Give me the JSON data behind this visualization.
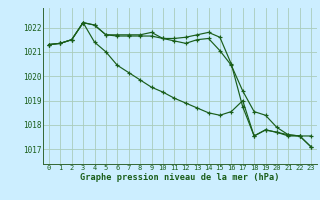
{
  "background_color": "#cceeff",
  "grid_color": "#aaccbb",
  "line_color": "#1a5e1a",
  "xlabel": "Graphe pression niveau de la mer (hPa)",
  "ylim": [
    1016.4,
    1022.8
  ],
  "xlim": [
    -0.5,
    23.5
  ],
  "yticks": [
    1017,
    1018,
    1019,
    1020,
    1021,
    1022
  ],
  "xticks": [
    0,
    1,
    2,
    3,
    4,
    5,
    6,
    7,
    8,
    9,
    10,
    11,
    12,
    13,
    14,
    15,
    16,
    17,
    18,
    19,
    20,
    21,
    22,
    23
  ],
  "series": [
    [
      1021.3,
      1021.35,
      1021.5,
      1022.2,
      1022.1,
      1021.7,
      1021.65,
      1021.65,
      1021.65,
      1021.65,
      1021.55,
      1021.45,
      1021.35,
      1021.5,
      1021.55,
      1021.05,
      1020.45,
      1019.4,
      1018.55,
      1018.4,
      1017.9,
      1017.6,
      1017.55,
      1017.55
    ],
    [
      1021.3,
      1021.35,
      1021.5,
      1022.2,
      1022.1,
      1021.7,
      1021.7,
      1021.7,
      1021.7,
      1021.8,
      1021.55,
      1021.55,
      1021.6,
      1021.7,
      1021.8,
      1021.6,
      1020.5,
      1018.75,
      1017.55,
      1017.8,
      1017.7,
      1017.6,
      1017.55,
      1017.1
    ],
    [
      1021.3,
      1021.35,
      1021.5,
      1022.2,
      1021.4,
      1021.0,
      1020.45,
      1020.15,
      1019.85,
      1019.55,
      1019.35,
      1019.1,
      1018.9,
      1018.7,
      1018.5,
      1018.4,
      1018.55,
      1019.0,
      1017.55,
      1017.8,
      1017.7,
      1017.55,
      1017.55,
      1017.1
    ]
  ]
}
